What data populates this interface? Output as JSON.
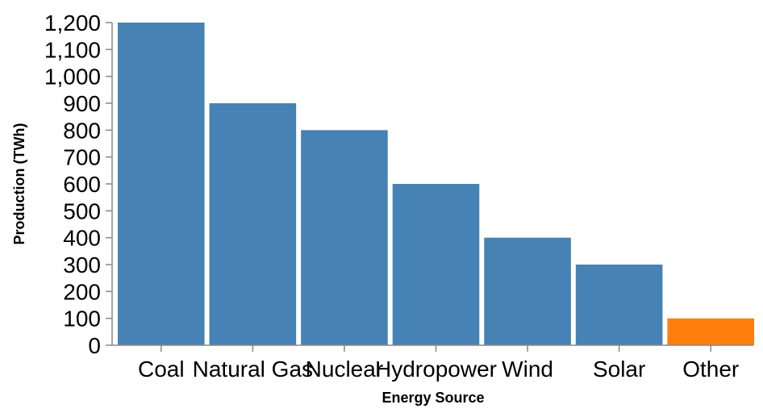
{
  "chart_data": {
    "type": "bar",
    "categories": [
      "Coal",
      "Natural Gas",
      "Nuclear",
      "Hydropower",
      "Wind",
      "Solar",
      "Other"
    ],
    "values": [
      1200,
      900,
      800,
      600,
      400,
      300,
      100
    ],
    "xlabel": "Energy Source",
    "ylabel": "Production (TWh)",
    "ylim": [
      0,
      1200
    ],
    "yticks": [
      "0",
      "100",
      "200",
      "300",
      "400",
      "500",
      "600",
      "700",
      "800",
      "900",
      "1,000",
      "1,100",
      "1,200"
    ],
    "colors": {
      "default": "#4682b4",
      "highlight": "#ff7f0e"
    },
    "highlighted_categories": [
      "Other"
    ],
    "grid": false,
    "legend": "none"
  }
}
